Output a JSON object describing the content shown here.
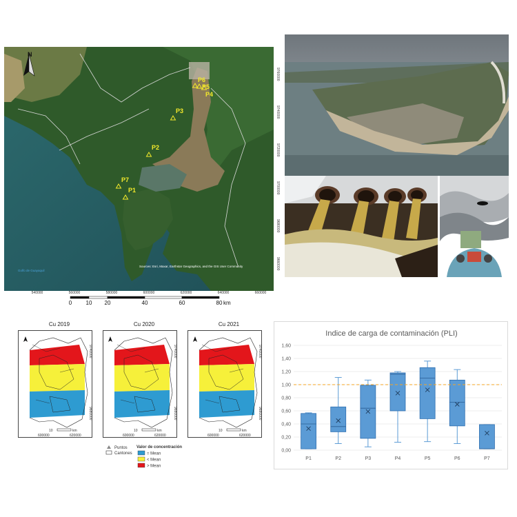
{
  "main_map": {
    "north": "N",
    "points": [
      {
        "label": "P1"
      },
      {
        "label": "P2"
      },
      {
        "label": "P3"
      },
      {
        "label": "P4"
      },
      {
        "label": "P5"
      },
      {
        "label": "P6"
      },
      {
        "label": "P7"
      }
    ],
    "x_ticks": [
      "540000",
      "560000",
      "580000",
      "600000",
      "620000",
      "640000",
      "660000"
    ],
    "y_ticks": [
      "9760000",
      "9740000",
      "9720000",
      "9700000",
      "9680000",
      "9660000"
    ],
    "scale_labels": [
      "0",
      "10",
      "20",
      "40",
      "60",
      "80"
    ],
    "scale_unit": "km",
    "sea_label": "Golfo de Guayaquil",
    "attribution": "Sources: Esri, Maxar, Earthstar Geographics, and the GIS User Community"
  },
  "cu_maps": [
    {
      "title": "Cu 2019"
    },
    {
      "title": "Cu 2020"
    },
    {
      "title": "Cu 2021"
    }
  ],
  "cu_scale": "10",
  "cu_scale_unit": "km",
  "cu_x_ticks": [
    "600000",
    "620000"
  ],
  "cu_y_ticks": [
    "9740000",
    "9680000"
  ],
  "legend": {
    "points_label": "Puntos",
    "cantones_label": "Cantones",
    "title": "Valor de concentración",
    "items": [
      {
        "label": "= Mean",
        "color": "#2e9bd1"
      },
      {
        "label": "< Mean",
        "color": "#f6f03a"
      },
      {
        "label": "> Mean",
        "color": "#e3161b"
      }
    ]
  },
  "colors": {
    "box_fill": "#5b9bd5",
    "box_stroke": "#2f6fb0",
    "reference_line": "#f5a623",
    "red": "#e3161b",
    "yellow": "#f6f03a",
    "blue": "#2e9bd1"
  },
  "chart_data": {
    "type": "box",
    "title": "Indice de carga de contaminación (PLI)",
    "categories": [
      "P1",
      "P2",
      "P3",
      "P4",
      "P5",
      "P6",
      "P7"
    ],
    "y_ticks": [
      "0,00",
      "0,20",
      "0,40",
      "0,60",
      "0,80",
      "1,00",
      "1,20",
      "1,40",
      "1,60"
    ],
    "ylim": [
      0,
      1.6
    ],
    "reference_line": 1.0,
    "boxes": [
      {
        "name": "P1",
        "min": 0.02,
        "q1": 0.02,
        "median": 0.4,
        "q3": 0.56,
        "max": 0.57,
        "mean": 0.33
      },
      {
        "name": "P2",
        "min": 0.1,
        "q1": 0.28,
        "median": 0.36,
        "q3": 0.66,
        "max": 1.11,
        "mean": 0.45
      },
      {
        "name": "P3",
        "min": 0.05,
        "q1": 0.18,
        "median": 0.64,
        "q3": 0.99,
        "max": 1.07,
        "mean": 0.59
      },
      {
        "name": "P4",
        "min": 0.12,
        "q1": 0.6,
        "median": 1.16,
        "q3": 1.18,
        "max": 1.2,
        "mean": 0.87
      },
      {
        "name": "P5",
        "min": 0.13,
        "q1": 0.48,
        "median": 1.1,
        "q3": 1.26,
        "max": 1.36,
        "mean": 0.92
      },
      {
        "name": "P6",
        "min": 0.1,
        "q1": 0.37,
        "median": 0.73,
        "q3": 1.07,
        "max": 1.23,
        "mean": 0.7
      },
      {
        "name": "P7",
        "min": 0.02,
        "q1": 0.02,
        "median": 0.02,
        "q3": 0.39,
        "max": 0.39,
        "mean": 0.26
      }
    ]
  }
}
